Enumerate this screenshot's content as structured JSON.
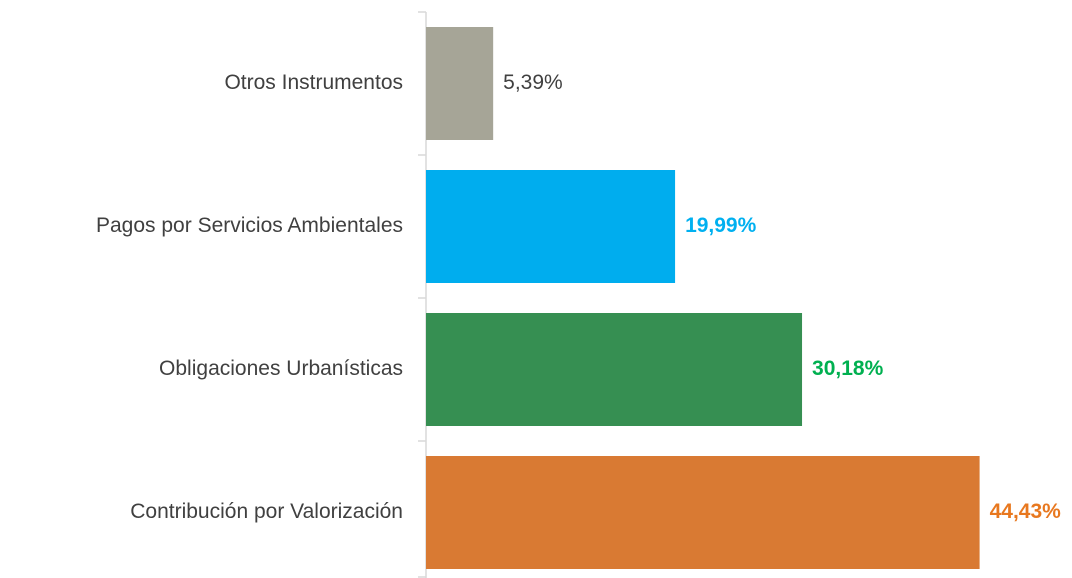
{
  "chart_data": {
    "type": "hbar",
    "categories": [
      "Otros Instrumentos",
      "Pagos por Servicios Ambientales",
      "Obligaciones Urbanísticas",
      "Contribución por Valorización"
    ],
    "values": [
      5.39,
      19.99,
      30.18,
      44.43
    ],
    "value_labels": [
      "5,39%",
      "19,99%",
      "30,18%",
      "44,43%"
    ],
    "colors": [
      "#a6a597",
      "#00adee",
      "#368f52",
      "#d97a33"
    ],
    "label_colors": [
      "#404040",
      "#00b0f0",
      "#00b050",
      "#e8781f"
    ],
    "label_weights": [
      "normal",
      "bold",
      "bold",
      "bold"
    ],
    "xlim": [
      0,
      50
    ]
  }
}
